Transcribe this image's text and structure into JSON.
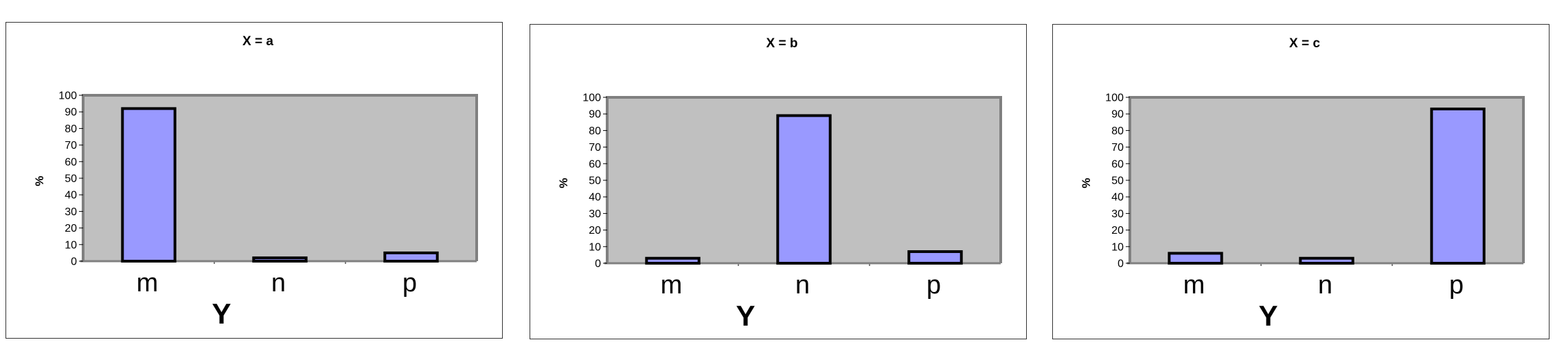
{
  "chart_data": [
    {
      "type": "bar",
      "title": "X = a",
      "xlabel": "Y",
      "ylabel": "%",
      "ylim": [
        0,
        100
      ],
      "yticks": [
        "0",
        "10",
        "20",
        "30",
        "40",
        "50",
        "60",
        "70",
        "80",
        "90",
        "100"
      ],
      "categories": [
        "m",
        "n",
        "p"
      ],
      "values": [
        92,
        2,
        5
      ],
      "grid": false,
      "colors": {
        "plot_bg": "#c0c0c0",
        "bar": "#9999ff",
        "bar_edge": "#000000"
      }
    },
    {
      "type": "bar",
      "title": "X = b",
      "xlabel": "Y",
      "ylabel": "%",
      "ylim": [
        0,
        100
      ],
      "yticks": [
        "0",
        "10",
        "20",
        "30",
        "40",
        "50",
        "60",
        "70",
        "80",
        "90",
        "100"
      ],
      "categories": [
        "m",
        "n",
        "p"
      ],
      "values": [
        3,
        89,
        7
      ],
      "grid": false,
      "colors": {
        "plot_bg": "#c0c0c0",
        "bar": "#9999ff",
        "bar_edge": "#000000"
      }
    },
    {
      "type": "bar",
      "title": "X  =  c",
      "xlabel": "Y",
      "ylabel": "%",
      "ylim": [
        0,
        100
      ],
      "yticks": [
        "0",
        "10",
        "20",
        "30",
        "40",
        "50",
        "60",
        "70",
        "80",
        "90",
        "100"
      ],
      "categories": [
        "m",
        "n",
        "p"
      ],
      "values": [
        6,
        3,
        93
      ],
      "grid": false,
      "colors": {
        "plot_bg": "#c0c0c0",
        "bar": "#9999ff",
        "bar_edge": "#000000"
      }
    }
  ]
}
